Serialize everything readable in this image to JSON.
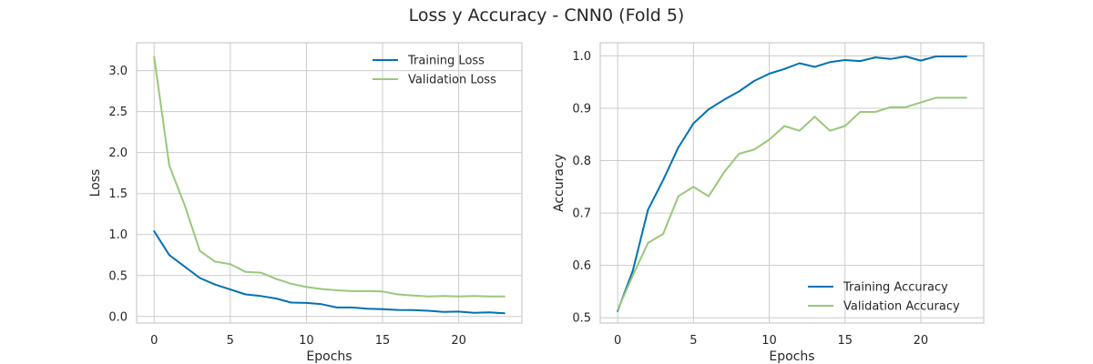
{
  "title": "Loss y Accuracy - CNN0 (Fold 5)",
  "colors": {
    "training": "#0072b2",
    "validation": "#9ac77a",
    "grid": "#cccccc",
    "frame": "#cccccc"
  },
  "chart_data": [
    {
      "type": "line",
      "xlabel": "Epochs",
      "ylabel": "Loss",
      "xlim": [
        -1.15,
        24.15
      ],
      "ylim": [
        -0.08,
        3.34
      ],
      "xticks": [
        0,
        5,
        10,
        15,
        20
      ],
      "xtick_labels": [
        "0",
        "5",
        "10",
        "15",
        "20"
      ],
      "yticks": [
        0.0,
        0.5,
        1.0,
        1.5,
        2.0,
        2.5,
        3.0
      ],
      "ytick_labels": [
        "0.0",
        "0.5",
        "1.0",
        "1.5",
        "2.0",
        "2.5",
        "3.0"
      ],
      "grid": true,
      "legend_position": "top-right",
      "x": [
        0,
        1,
        2,
        3,
        4,
        5,
        6,
        7,
        8,
        9,
        10,
        11,
        12,
        13,
        14,
        15,
        16,
        17,
        18,
        19,
        20,
        21,
        22,
        23
      ],
      "series": [
        {
          "name": "Training Loss",
          "color_key": "training",
          "values": [
            1.04,
            0.75,
            0.61,
            0.47,
            0.39,
            0.33,
            0.27,
            0.25,
            0.22,
            0.17,
            0.165,
            0.15,
            0.11,
            0.11,
            0.095,
            0.09,
            0.08,
            0.078,
            0.07,
            0.055,
            0.06,
            0.045,
            0.05,
            0.04
          ]
        },
        {
          "name": "Validation Loss",
          "color_key": "validation",
          "values": [
            3.17,
            1.84,
            1.36,
            0.8,
            0.67,
            0.64,
            0.545,
            0.535,
            0.46,
            0.4,
            0.36,
            0.335,
            0.32,
            0.31,
            0.31,
            0.305,
            0.27,
            0.255,
            0.245,
            0.25,
            0.245,
            0.25,
            0.245,
            0.245
          ]
        }
      ]
    },
    {
      "type": "line",
      "xlabel": "Epochs",
      "ylabel": "Accuracy",
      "xlim": [
        -1.15,
        24.15
      ],
      "ylim": [
        0.49,
        1.025
      ],
      "xticks": [
        0,
        5,
        10,
        15,
        20
      ],
      "xtick_labels": [
        "0",
        "5",
        "10",
        "15",
        "20"
      ],
      "yticks": [
        0.5,
        0.6,
        0.7,
        0.8,
        0.9,
        1.0
      ],
      "ytick_labels": [
        "0.5",
        "0.6",
        "0.7",
        "0.8",
        "0.9",
        "1.0"
      ],
      "grid": true,
      "legend_position": "bottom-right",
      "x": [
        0,
        1,
        2,
        3,
        4,
        5,
        6,
        7,
        8,
        9,
        10,
        11,
        12,
        13,
        14,
        15,
        16,
        17,
        18,
        19,
        20,
        21,
        22,
        23
      ],
      "series": [
        {
          "name": "Training Accuracy",
          "color_key": "training",
          "values": [
            0.513,
            0.59,
            0.706,
            0.763,
            0.825,
            0.871,
            0.898,
            0.916,
            0.932,
            0.952,
            0.966,
            0.975,
            0.986,
            0.979,
            0.988,
            0.992,
            0.99,
            0.997,
            0.994,
            0.999,
            0.991,
            0.999,
            0.999,
            0.999
          ]
        },
        {
          "name": "Validation Accuracy",
          "color_key": "validation",
          "values": [
            0.515,
            0.581,
            0.643,
            0.66,
            0.732,
            0.75,
            0.732,
            0.777,
            0.813,
            0.821,
            0.84,
            0.866,
            0.857,
            0.884,
            0.857,
            0.866,
            0.893,
            0.893,
            0.902,
            0.902,
            0.911,
            0.92,
            0.92,
            0.92
          ]
        }
      ]
    }
  ]
}
